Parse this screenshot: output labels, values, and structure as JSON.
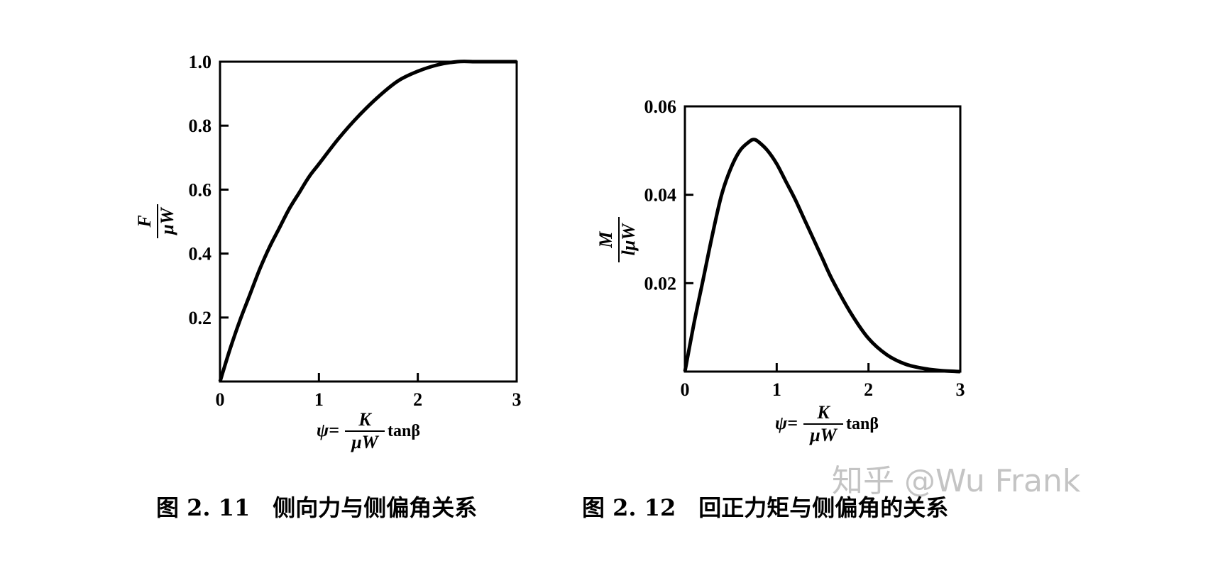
{
  "chart_data": [
    {
      "type": "line",
      "caption": "图 2. 11　侧向力与侧偏角关系",
      "ylabel_numerator": "F",
      "ylabel_denominator": "μW",
      "xlabel_prefix": "ψ=",
      "xlabel_numerator": "K",
      "xlabel_denominator": "μW",
      "xlabel_suffix": "tanβ",
      "xlim": [
        0,
        3
      ],
      "ylim": [
        0,
        1.0
      ],
      "xticks": [
        "0",
        "1",
        "2",
        "3"
      ],
      "yticks": [
        "0.2",
        "0.4",
        "0.6",
        "0.8",
        "1.0"
      ],
      "grid": false,
      "series": [
        {
          "x": [
            0,
            0.1,
            0.2,
            0.3,
            0.4,
            0.5,
            0.6,
            0.7,
            0.8,
            0.9,
            1.0,
            1.2,
            1.4,
            1.6,
            1.8,
            2.0,
            2.2,
            2.4,
            2.6,
            2.8,
            3.0
          ],
          "y": [
            0,
            0.1,
            0.19,
            0.27,
            0.35,
            0.42,
            0.48,
            0.54,
            0.59,
            0.64,
            0.68,
            0.76,
            0.83,
            0.89,
            0.94,
            0.97,
            0.99,
            1.0,
            1.0,
            1.0,
            1.0
          ]
        }
      ]
    },
    {
      "type": "line",
      "caption": "图 2. 12　回正力矩与侧偏角的关系",
      "ylabel_numerator": "M",
      "ylabel_denominator": "lμW",
      "xlabel_prefix": "ψ=",
      "xlabel_numerator": "K",
      "xlabel_denominator": "μW",
      "xlabel_suffix": "tanβ",
      "xlim": [
        0,
        3
      ],
      "ylim": [
        0,
        0.06
      ],
      "xticks": [
        "0",
        "1",
        "2",
        "3"
      ],
      "yticks": [
        "0.02",
        "0.04",
        "0.06"
      ],
      "grid": false,
      "series": [
        {
          "x": [
            0,
            0.1,
            0.2,
            0.3,
            0.4,
            0.5,
            0.6,
            0.7,
            0.75,
            0.8,
            0.9,
            1.0,
            1.1,
            1.2,
            1.3,
            1.4,
            1.5,
            1.6,
            1.8,
            2.0,
            2.2,
            2.4,
            2.6,
            2.8,
            3.0
          ],
          "y": [
            0,
            0.011,
            0.021,
            0.031,
            0.04,
            0.046,
            0.05,
            0.052,
            0.0525,
            0.052,
            0.05,
            0.047,
            0.043,
            0.039,
            0.0345,
            0.03,
            0.0255,
            0.021,
            0.0135,
            0.0075,
            0.0038,
            0.0017,
            0.0007,
            0.0002,
            0.0
          ]
        }
      ]
    }
  ],
  "watermark": "知乎 @Wu Frank"
}
